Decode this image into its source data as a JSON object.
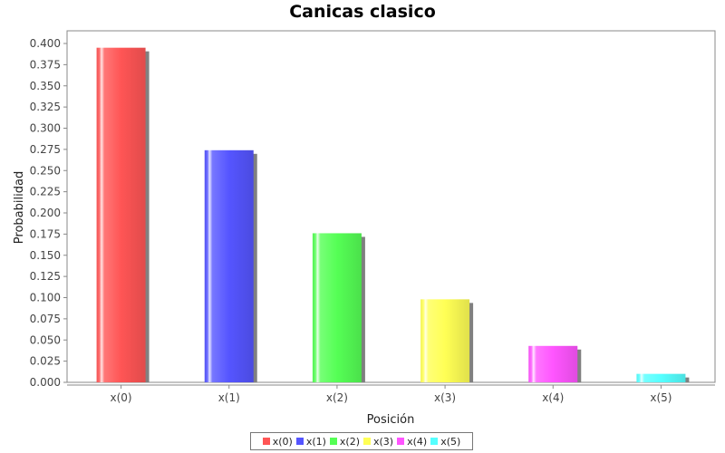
{
  "chart_data": {
    "type": "bar",
    "title": "Canicas clasico",
    "xlabel": "Posición",
    "ylabel": "Probabilidad",
    "categories": [
      "x(0)",
      "x(1)",
      "x(2)",
      "x(3)",
      "x(4)",
      "x(5)"
    ],
    "values": [
      0.395,
      0.274,
      0.176,
      0.098,
      0.043,
      0.01
    ],
    "colors": [
      "#ff5555",
      "#5555ff",
      "#55ff55",
      "#ffff55",
      "#ff55ff",
      "#55ffff"
    ],
    "ylim": [
      0,
      0.4
    ],
    "yticks": [
      "0.000",
      "0.025",
      "0.050",
      "0.075",
      "0.100",
      "0.125",
      "0.150",
      "0.175",
      "0.200",
      "0.225",
      "0.250",
      "0.275",
      "0.300",
      "0.325",
      "0.350",
      "0.375",
      "0.400"
    ],
    "legend": {
      "position": "bottom",
      "entries": [
        "x(0)",
        "x(1)",
        "x(2)",
        "x(3)",
        "x(4)",
        "x(5)"
      ]
    },
    "grid": false
  }
}
